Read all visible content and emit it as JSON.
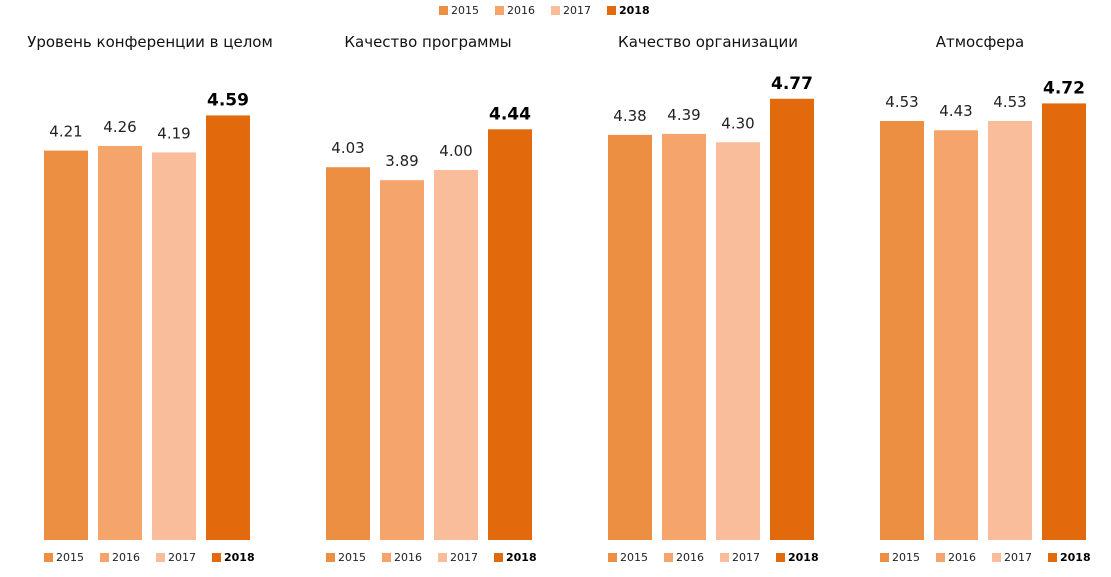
{
  "chart_data": {
    "type": "bar",
    "legend": {
      "placement": "top-center",
      "entries": [
        "2015",
        "2016",
        "2017",
        "2018"
      ],
      "bold_index": 3
    },
    "series_colors": [
      "#ec8f42",
      "#f5a46c",
      "#f9bd9c",
      "#e3690d"
    ],
    "ylim": [
      0,
      5
    ],
    "panels": [
      {
        "title": "Уровень конференции в целом",
        "categories": [
          "2015",
          "2016",
          "2017",
          "2018"
        ],
        "values": [
          4.21,
          4.26,
          4.19,
          4.59
        ],
        "labels": [
          "4.21",
          "4.26",
          "4.19",
          "4.59"
        ]
      },
      {
        "title": "Качество программы",
        "categories": [
          "2015",
          "2016",
          "2017",
          "2018"
        ],
        "values": [
          4.03,
          3.89,
          4.0,
          4.44
        ],
        "labels": [
          "4.03",
          "3.89",
          "4.00",
          "4.44"
        ]
      },
      {
        "title": "Качество организации",
        "categories": [
          "2015",
          "2016",
          "2017",
          "2018"
        ],
        "values": [
          4.38,
          4.39,
          4.3,
          4.77
        ],
        "labels": [
          "4.38",
          "4.39",
          "4.30",
          "4.77"
        ]
      },
      {
        "title": "Атмосфера",
        "categories": [
          "2015",
          "2016",
          "2017",
          "2018"
        ],
        "values": [
          4.53,
          4.43,
          4.53,
          4.72
        ],
        "labels": [
          "4.53",
          "4.43",
          "4.53",
          "4.72"
        ]
      }
    ]
  }
}
